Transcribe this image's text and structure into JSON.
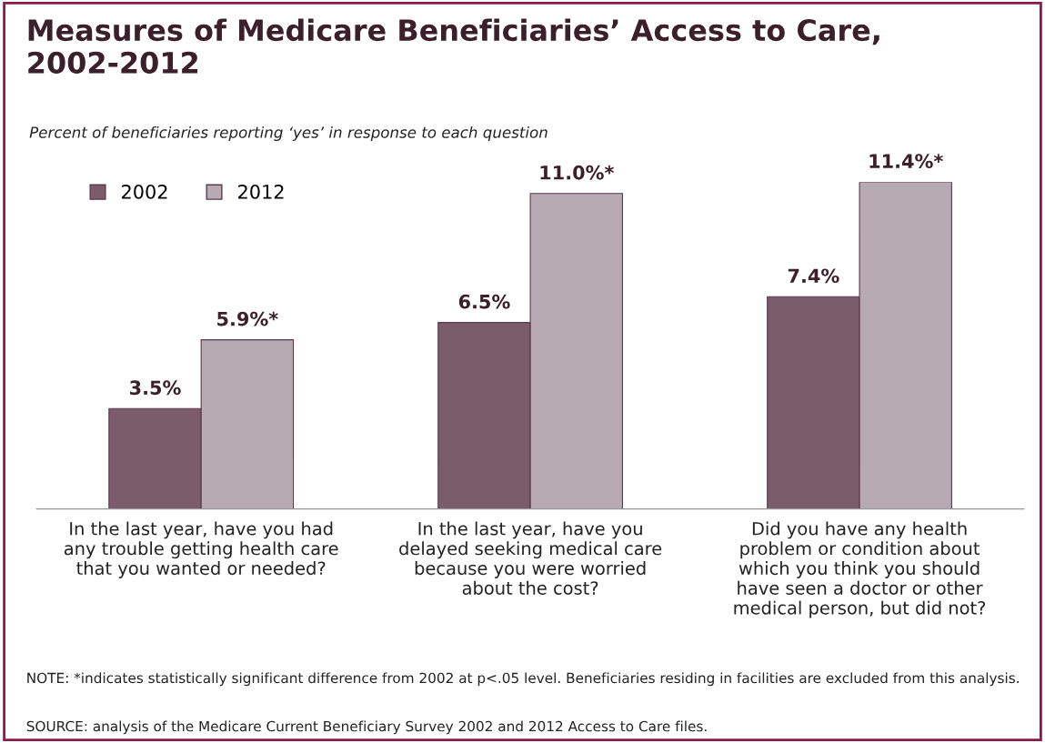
{
  "chart_data": {
    "type": "bar",
    "title": "Measures of Medicare Beneficiaries’ Access to Care, 2002-2012",
    "subtitle": "Percent of beneficiaries reporting ‘yes’ in response to each question",
    "categories": [
      "In the last year, have you had\nany trouble getting health care\nthat you wanted or needed?",
      "In the last year, have you\ndelayed seeking medical care\nbecause you were worried\nabout the cost?",
      "Did you have any health\nproblem or condition about\nwhich you think you should\nhave seen a doctor or other\nmedical person, but did not?"
    ],
    "series": [
      {
        "name": "2002",
        "color": "#7b5c6b",
        "values": [
          3.5,
          6.5,
          7.4
        ],
        "value_labels": [
          "3.5%",
          "6.5%",
          "7.4%"
        ]
      },
      {
        "name": "2012",
        "color": "#b7aab3",
        "values": [
          5.9,
          11.0,
          11.4
        ],
        "value_labels": [
          "5.9%*",
          "11.0%*",
          "11.4%*"
        ]
      }
    ],
    "legend": "top left",
    "grid": false,
    "annotations": [
      "NOTE: *indicates statistically significant difference from 2002 at p<.05 level. Beneficiaries residing in facilities are excluded from this analysis.",
      "SOURCE: analysis of the Medicare Current Beneficiary Survey 2002 and 2012 Access to Care files."
    ]
  }
}
